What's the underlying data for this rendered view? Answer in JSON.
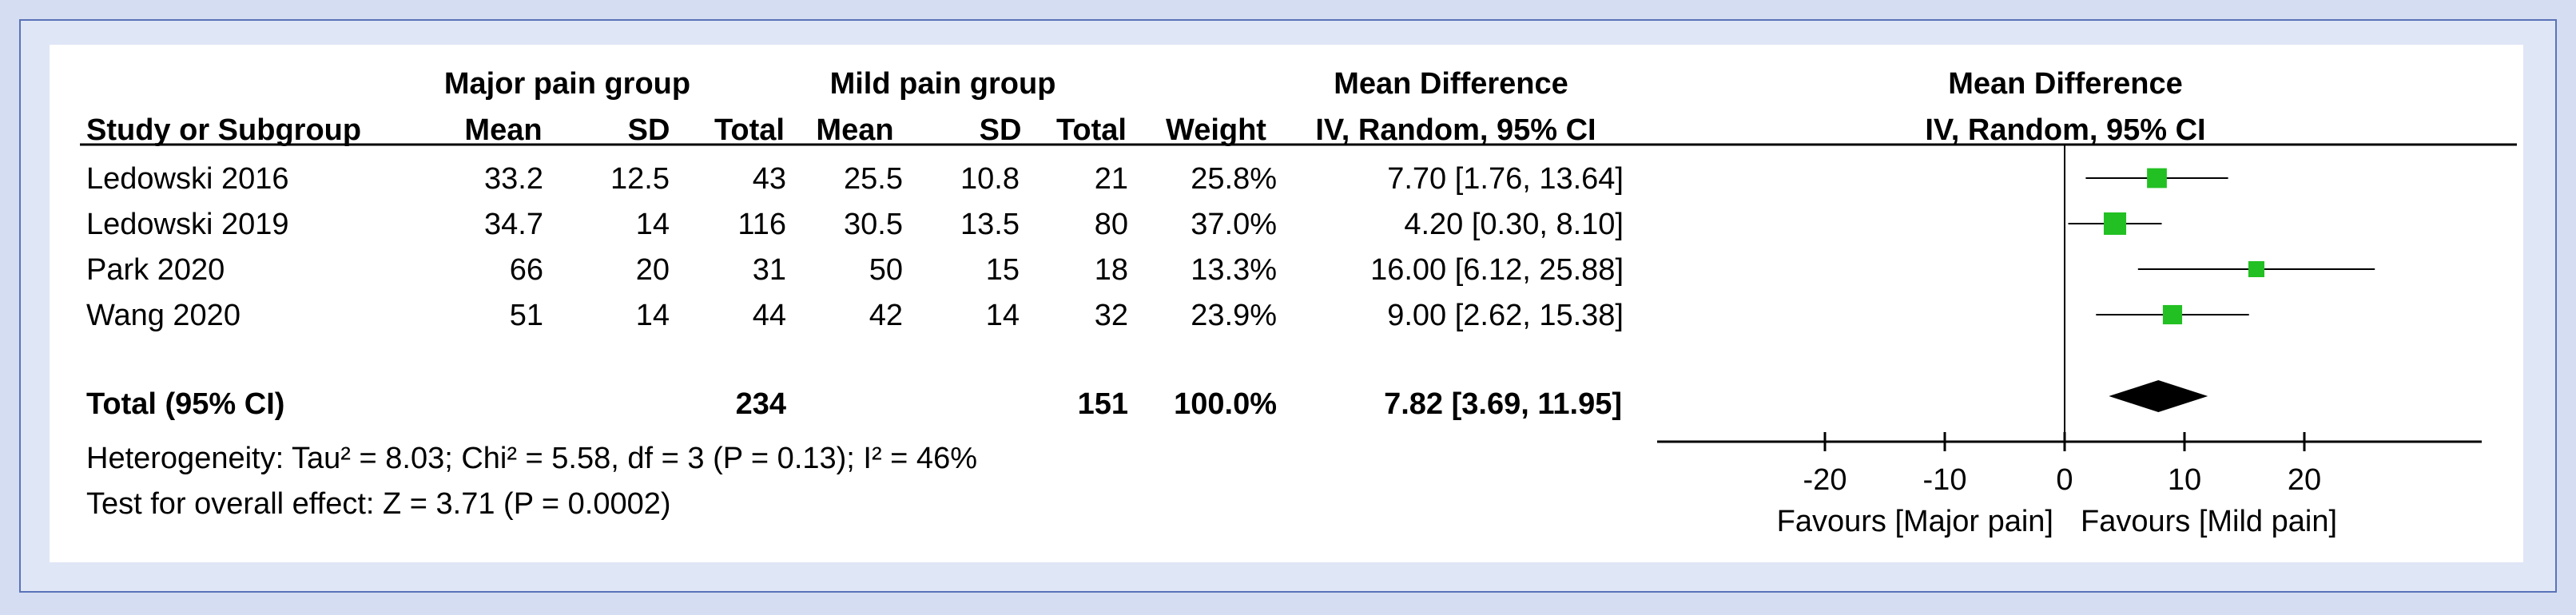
{
  "header": {
    "group1_label": "Major pain group",
    "group2_label": "Mild pain group",
    "md_label": "Mean Difference",
    "study_col": "Study or Subgroup",
    "mean_col": "Mean",
    "sd_col": "SD",
    "total_col": "Total",
    "weight_col": "Weight",
    "ci_col": "IV, Random, 95% CI",
    "plot_title": "Mean Difference",
    "plot_subtitle": "IV, Random, 95% CI"
  },
  "footer": {
    "heterogeneity": "Heterogeneity: Tau² = 8.03; Chi² = 5.58, df = 3 (P = 0.13); I² = 46%",
    "overall_effect": "Test for overall effect: Z = 3.71 (P = 0.0002)"
  },
  "colors": {
    "point": "#22c022",
    "diamond": "#000000",
    "frame_bg": "#dfe6f6",
    "frame_border": "#5a72b8"
  },
  "chart_data": {
    "type": "forest",
    "xlim": [
      -20,
      20
    ],
    "xticks": [
      "-20",
      "-10",
      "0",
      "10",
      "20"
    ],
    "x_left_label": "Favours [Major pain]",
    "x_right_label": "Favours [Mild pain]",
    "studies": [
      {
        "name": "Ledowski 2016",
        "mean1": "33.2",
        "sd1": "12.5",
        "total1": "43",
        "mean2": "25.5",
        "sd2": "10.8",
        "total2": "21",
        "weight": "25.8%",
        "ci_text": "7.70 [1.76, 13.64]",
        "md": 7.7,
        "lo": 1.76,
        "hi": 13.64,
        "w": 25.8
      },
      {
        "name": "Ledowski 2019",
        "mean1": "34.7",
        "sd1": "14",
        "total1": "116",
        "mean2": "30.5",
        "sd2": "13.5",
        "total2": "80",
        "weight": "37.0%",
        "ci_text": "4.20 [0.30, 8.10]",
        "md": 4.2,
        "lo": 0.3,
        "hi": 8.1,
        "w": 37.0
      },
      {
        "name": "Park 2020",
        "mean1": "66",
        "sd1": "20",
        "total1": "31",
        "mean2": "50",
        "sd2": "15",
        "total2": "18",
        "weight": "13.3%",
        "ci_text": "16.00 [6.12, 25.88]",
        "md": 16.0,
        "lo": 6.12,
        "hi": 25.88,
        "w": 13.3
      },
      {
        "name": "Wang 2020",
        "mean1": "51",
        "sd1": "14",
        "total1": "44",
        "mean2": "42",
        "sd2": "14",
        "total2": "32",
        "weight": "23.9%",
        "ci_text": "9.00 [2.62, 15.38]",
        "md": 9.0,
        "lo": 2.62,
        "hi": 15.38,
        "w": 23.9
      }
    ],
    "total": {
      "name": "Total (95% CI)",
      "total1": "234",
      "total2": "151",
      "weight": "100.0%",
      "ci_text": "7.82 [3.69, 11.95]",
      "md": 7.82,
      "lo": 3.69,
      "hi": 11.95
    }
  }
}
